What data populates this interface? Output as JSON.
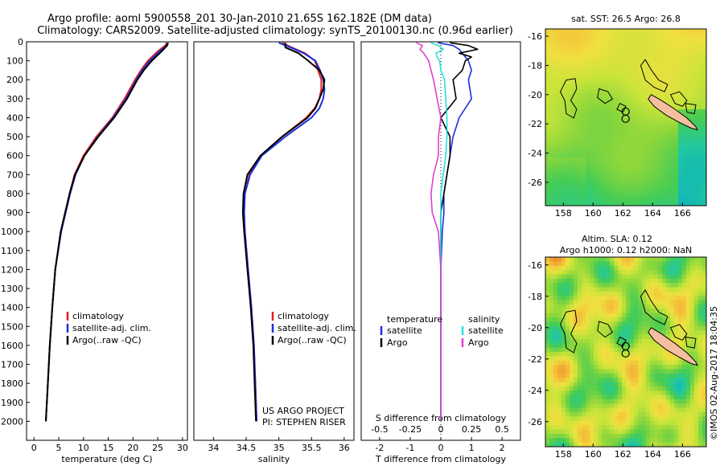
{
  "title_line1": "Argo profile: aoml 5900558_201 30-Jan-2010 21.65S 162.182E (DM data)",
  "title_line2": "Climatology: CARS2009. Satellite-adjusted climatology: synTS_20100130.nc (0.96d earlier)",
  "colors": {
    "climatology": "#e02020",
    "satellite": "#1a2fe0",
    "argo": "#000000",
    "sal_satellite": "#22e0e0",
    "sal_argo": "#e040d0",
    "land": "#f4bfa0"
  },
  "chart_data": [
    {
      "name": "temperature-profile",
      "type": "line",
      "xlabel": "temperature (deg C)",
      "xlim": [
        -1.5,
        31
      ],
      "ylim": [
        0,
        2100
      ],
      "xticks": [
        "0",
        "5",
        "10",
        "15",
        "20",
        "25",
        "30"
      ],
      "yticks": [
        "0",
        "100",
        "200",
        "300",
        "400",
        "500",
        "600",
        "700",
        "800",
        "900",
        "1000",
        "1100",
        "1200",
        "1300",
        "1400",
        "1500",
        "1600",
        "1700",
        "1800",
        "1900",
        "2000"
      ],
      "legend": [
        "climatology",
        "satellite-adj. clim.",
        "Argo(..raw -QC)"
      ],
      "depth": [
        5,
        20,
        50,
        100,
        150,
        200,
        300,
        400,
        500,
        600,
        700,
        800,
        1000,
        1200,
        1400,
        1600,
        1800,
        2000
      ],
      "series": [
        {
          "name": "climatology",
          "values": [
            26.8,
            26.5,
            25.0,
            23.0,
            21.6,
            20.4,
            18.3,
            15.8,
            12.6,
            10.0,
            8.2,
            7.2,
            5.4,
            4.3,
            3.7,
            3.2,
            2.8,
            2.4
          ]
        },
        {
          "name": "satellite-adj. clim.",
          "values": [
            27.0,
            26.8,
            25.4,
            23.4,
            21.9,
            20.7,
            18.6,
            16.0,
            12.9,
            10.2,
            8.4,
            7.3,
            5.5,
            4.3,
            3.7,
            3.2,
            2.8,
            2.4
          ]
        },
        {
          "name": "Argo(..raw -QC)",
          "values": [
            27.1,
            26.9,
            25.8,
            23.8,
            22.2,
            20.9,
            18.8,
            16.2,
            13.0,
            10.2,
            8.3,
            7.2,
            5.4,
            4.3,
            3.7,
            3.2,
            2.8,
            2.4
          ]
        }
      ]
    },
    {
      "name": "salinity-profile",
      "type": "line",
      "xlabel": "salinity",
      "xlim": [
        33.7,
        36.15
      ],
      "ylim": [
        0,
        2100
      ],
      "xticks": [
        "34",
        "34.5",
        "35",
        "35.5",
        "36"
      ],
      "legend": [
        "climatology",
        "satellite-adj. clim.",
        "Argo(..raw -QC)"
      ],
      "notes": [
        "US ARGO PROJECT",
        "PI: STEPHEN RISER"
      ],
      "depth": [
        5,
        30,
        60,
        100,
        150,
        200,
        250,
        300,
        350,
        400,
        500,
        600,
        700,
        800,
        900,
        1000,
        1200,
        1400,
        1600,
        1800,
        2000
      ],
      "series": [
        {
          "name": "climatology",
          "values": [
            35.05,
            35.2,
            35.4,
            35.55,
            35.6,
            35.65,
            35.65,
            35.62,
            35.55,
            35.42,
            35.05,
            34.72,
            34.55,
            34.48,
            34.47,
            34.48,
            34.53,
            34.58,
            34.62,
            34.64,
            34.66
          ]
        },
        {
          "name": "satellite-adj. clim.",
          "values": [
            35.0,
            35.18,
            35.38,
            35.56,
            35.63,
            35.68,
            35.7,
            35.68,
            35.62,
            35.5,
            35.1,
            34.74,
            34.56,
            34.48,
            34.47,
            34.48,
            34.53,
            34.58,
            34.62,
            34.64,
            34.66
          ]
        },
        {
          "name": "Argo(..raw -QC)",
          "values": [
            35.1,
            35.1,
            35.3,
            35.45,
            35.62,
            35.7,
            35.68,
            35.62,
            35.56,
            35.44,
            35.05,
            34.72,
            34.52,
            34.46,
            34.45,
            34.47,
            34.52,
            34.57,
            34.61,
            34.63,
            34.65
          ]
        }
      ]
    },
    {
      "name": "difference-profile",
      "type": "line",
      "xlabel": "T difference from climatology",
      "xlabel_top": "S difference from climatology",
      "xlim": [
        -2.6,
        2.6
      ],
      "ylim": [
        0,
        2100
      ],
      "xticks": [
        "-2",
        "-1",
        "0",
        "1",
        "2"
      ],
      "xticks_top": [
        "-0.5",
        "-0.25",
        "0",
        "0.25",
        "0.5"
      ],
      "legend_left": {
        "header": "temperature",
        "items": [
          "satellite",
          "Argo"
        ]
      },
      "legend_right": {
        "header": "salinity",
        "items": [
          "satellite",
          "Argo"
        ]
      },
      "depth": [
        5,
        20,
        40,
        60,
        80,
        100,
        150,
        200,
        300,
        400,
        500,
        600,
        700,
        800,
        900,
        1000,
        1200,
        1400,
        1600,
        1800,
        2000
      ],
      "series": [
        {
          "name": "T satellite",
          "values": [
            -0.1,
            0.4,
            0.6,
            0.7,
            0.8,
            0.9,
            1.0,
            0.9,
            1.0,
            0.6,
            0.4,
            0.3,
            0.2,
            0.1,
            0.1,
            0.05,
            0.0,
            0.0,
            0.0,
            0.0,
            0.0
          ]
        },
        {
          "name": "T Argo",
          "values": [
            0.3,
            0.9,
            1.2,
            0.6,
            1.0,
            0.8,
            0.7,
            0.4,
            0.5,
            0.0,
            0.3,
            0.3,
            0.2,
            0.1,
            0.0,
            0.0,
            0.0,
            0.0,
            0.0,
            0.0,
            0.0
          ]
        },
        {
          "name": "S satellite",
          "values": [
            -0.08,
            -0.02,
            0.02,
            -0.04,
            -0.03,
            -0.01,
            0.0,
            0.03,
            0.04,
            0.05,
            0.05,
            0.04,
            0.02,
            0.0,
            0.0,
            0.0,
            0.0,
            0.0,
            0.0,
            0.0,
            0.0
          ]
        },
        {
          "name": "S Argo",
          "values": [
            -0.2,
            -0.15,
            -0.17,
            -0.14,
            -0.12,
            -0.1,
            -0.08,
            -0.06,
            -0.03,
            0.0,
            -0.02,
            -0.02,
            -0.06,
            -0.08,
            -0.07,
            -0.02,
            0.0,
            0.0,
            0.0,
            0.0,
            0.0
          ]
        }
      ]
    },
    {
      "name": "sst-map",
      "type": "heatmap",
      "title": "sat. SST: 26.5  Argo: 26.8",
      "xlim": [
        156.8,
        167.6
      ],
      "ylim": [
        -27.6,
        -15.5
      ],
      "xticks": [
        "158",
        "160",
        "162",
        "164",
        "166"
      ],
      "yticks": [
        "-16",
        "-18",
        "-20",
        "-22",
        "-24",
        "-26"
      ],
      "argo_position": [
        162.182,
        -21.65
      ]
    },
    {
      "name": "sla-map",
      "type": "heatmap",
      "title_line1": "Altim. SLA: 0.12",
      "title_line2": "Argo h1000: 0.12  h2000: NaN",
      "xlim": [
        156.8,
        167.6
      ],
      "ylim": [
        -27.6,
        -15.5
      ],
      "xticks": [
        "158",
        "160",
        "162",
        "164",
        "166"
      ],
      "yticks": [
        "-16",
        "-18",
        "-20",
        "-22",
        "-24",
        "-26"
      ],
      "argo_position": [
        162.182,
        -21.65
      ]
    }
  ],
  "footer": "©IMOS 02-Aug-2017 18:04:35"
}
